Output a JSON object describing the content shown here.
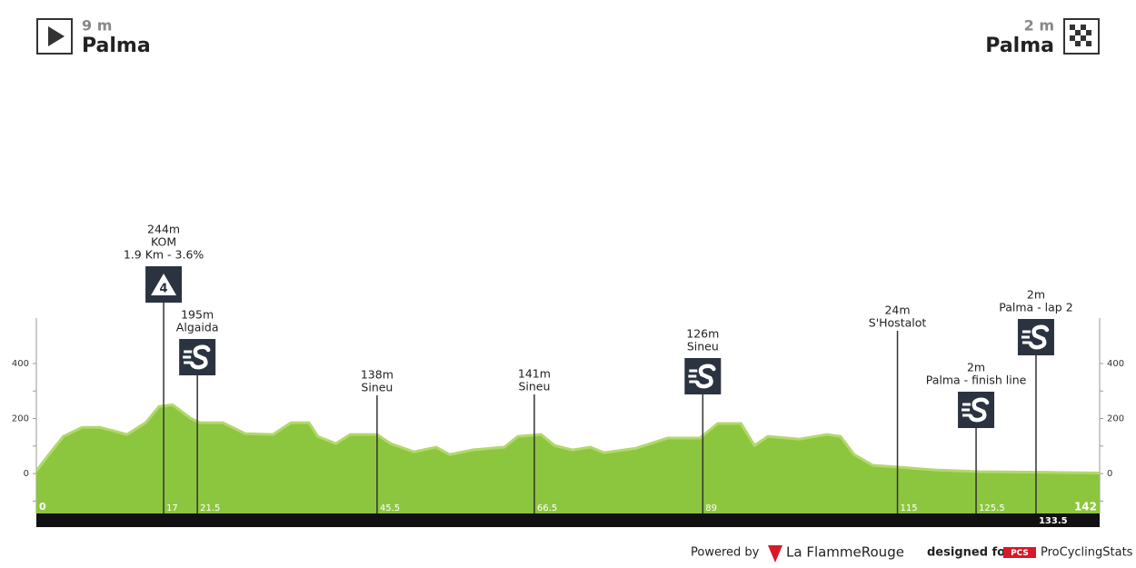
{
  "chart_data": {
    "type": "area",
    "start": {
      "altitude": "9 m",
      "name": "Palma"
    },
    "finish": {
      "altitude": "2 m",
      "name": "Palma"
    },
    "x": [
      0,
      1.2,
      3.6,
      6.1,
      8.5,
      12.1,
      14.6,
      16.4,
      18.2,
      20.6,
      21.8,
      24.9,
      27.9,
      31.6,
      34,
      36.4,
      37.6,
      40,
      41.9,
      45.5,
      47.3,
      50.4,
      53.4,
      55.2,
      58.3,
      62.5,
      64.3,
      67.4,
      69.2,
      71.6,
      74,
      75.8,
      80.1,
      84.3,
      88.6,
      91,
      94.1,
      95.9,
      97.7,
      101.9,
      105.6,
      107.4,
      109.2,
      111.7,
      115.3,
      120.1,
      125.9,
      134.1,
      142
    ],
    "values": [
      9,
      53,
      135,
      168,
      168,
      142,
      185,
      244,
      250,
      201,
      185,
      185,
      145,
      142,
      185,
      185,
      135,
      109,
      142,
      142,
      109,
      79,
      96,
      69,
      86,
      96,
      135,
      142,
      102,
      86,
      96,
      76,
      92,
      129,
      129,
      182,
      182,
      102,
      135,
      125,
      142,
      135,
      69,
      30,
      23,
      13,
      7,
      5,
      2
    ],
    "color": "#8cc63e",
    "xlim": [
      0,
      142
    ],
    "xticks": [
      0,
      142
    ],
    "ylim": [
      -145,
      565
    ],
    "yticks": [
      0,
      200,
      400
    ],
    "minor_yticks": [
      -100,
      100,
      300
    ],
    "waypoints": [
      {
        "km": 17,
        "labels": [
          "244m",
          "KOM",
          "1.9 Km - 3.6%"
        ],
        "icon": "kom",
        "icon_text": "4"
      },
      {
        "km": 21.5,
        "labels": [
          "195m",
          "Algaida"
        ],
        "icon": "sprint"
      },
      {
        "km": 45.5,
        "labels": [
          "138m",
          "Sineu"
        ]
      },
      {
        "km": 66.5,
        "labels": [
          "141m",
          "Sineu"
        ]
      },
      {
        "km": 89,
        "labels": [
          "126m",
          "Sineu"
        ],
        "icon": "sprint"
      },
      {
        "km": 115,
        "labels": [
          "24m",
          "S'Hostalot"
        ]
      },
      {
        "km": 125.5,
        "labels": [
          "2m",
          "Palma - finish line"
        ],
        "icon": "sprint"
      },
      {
        "km": 133.5,
        "labels": [
          "2m",
          "Palma - lap 2"
        ],
        "icon": "sprint"
      }
    ],
    "footer": {
      "powered": "Powered by",
      "brand": "La FlammeRouge",
      "designed": "designed for",
      "pcs": "PCS",
      "site": "ProCyclingStats"
    }
  }
}
